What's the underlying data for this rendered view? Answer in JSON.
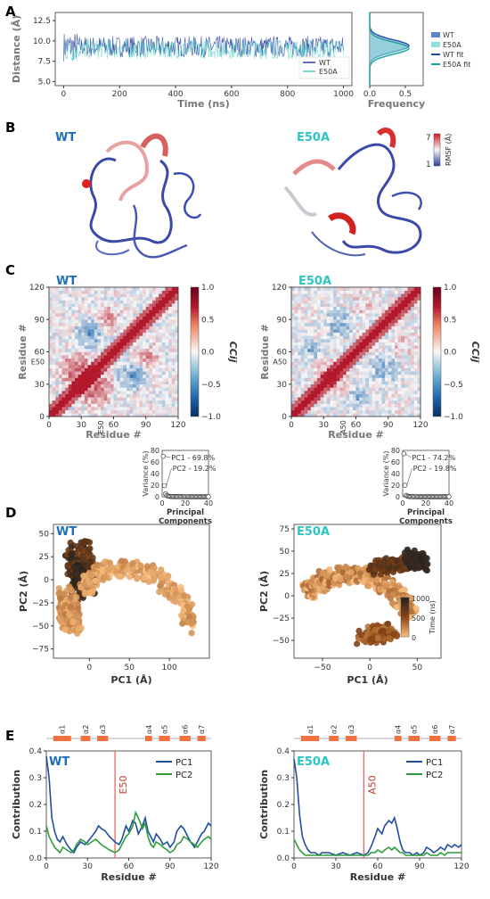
{
  "panels": {
    "A": "A",
    "B": "B",
    "C": "C",
    "D": "D",
    "E": "E"
  },
  "variants": {
    "wt": "WT",
    "e50a": "E50A"
  },
  "colors": {
    "wt": "#2a3f9e",
    "e50a": "#4fd1c5",
    "wt_fit": "#1c4fa0",
    "e50a_fit": "#1aa39a",
    "pc1": "#1f4ea1",
    "pc2": "#2e9e3a",
    "marker": "#e85a5a",
    "wt_text": "#1f6fb8",
    "e50a_text": "#2ec4c4",
    "alpha_bar": "#f07040"
  },
  "chart_data": [
    {
      "id": "A-trace",
      "type": "line",
      "ylabel": "Distance (Å)",
      "xlabel": "Time (ns)",
      "xlim": [
        -30,
        1030
      ],
      "ylim": [
        4.5,
        13.5
      ],
      "x_ticks": [
        "0",
        "200",
        "400",
        "600",
        "800",
        "1000"
      ],
      "y_ticks": [
        "5.0",
        "7.5",
        "10.0",
        "12.5"
      ],
      "legend": [
        "WT",
        "E50A"
      ],
      "legend_position": "right",
      "series": [
        {
          "name": "WT",
          "mean": 9.3,
          "spread": 1.3
        },
        {
          "name": "E50A",
          "mean": 9.0,
          "spread": 1.2
        }
      ]
    },
    {
      "id": "A-hist",
      "type": "area",
      "xlabel": "Frequency",
      "xlim": [
        0,
        0.75
      ],
      "x_ticks": [
        "0.0",
        "0.5"
      ],
      "legend": [
        "WT",
        "E50A",
        "WT fit",
        "E50A fit"
      ],
      "legend_position": "right",
      "series": [
        {
          "name": "WT",
          "peak_y": 9.4,
          "peak_freq": 0.55
        },
        {
          "name": "E50A",
          "peak_y": 9.1,
          "peak_freq": 0.55
        }
      ]
    },
    {
      "id": "C-WT",
      "type": "heatmap",
      "title": "WT",
      "xlabel": "Residue #",
      "ylabel": "Residue #",
      "x_ticks": [
        "0",
        "30",
        "60",
        "90",
        "120"
      ],
      "y_ticks": [
        "0",
        "30",
        "60",
        "90",
        "120"
      ],
      "marker": "E50",
      "colorbar_label": "CCij",
      "colorbar_ticks": [
        "1.0",
        "0.5",
        "0.0",
        "−0.5",
        "−1.0"
      ]
    },
    {
      "id": "C-E50A",
      "type": "heatmap",
      "title": "E50A",
      "xlabel": "Residue #",
      "ylabel": "Residue #",
      "x_ticks": [
        "0",
        "30",
        "60",
        "90",
        "120"
      ],
      "y_ticks": [
        "0",
        "30",
        "60",
        "90",
        "120"
      ],
      "marker": "A50",
      "colorbar_label": "CCij",
      "colorbar_ticks": [
        "1.0",
        "0.5",
        "0.0",
        "−0.5",
        "−1.0"
      ]
    },
    {
      "id": "D-WT-var",
      "type": "scatter",
      "ylabel": "Variance (%)",
      "xlabel": "Principal Components",
      "x_ticks": [
        "0",
        "20",
        "40"
      ],
      "y_ticks": [
        "0",
        "20",
        "40",
        "60",
        "80"
      ],
      "annotations": [
        "PC1 - 69.8%",
        "PC2 - 19.2%"
      ],
      "values": [
        69.8,
        19.2,
        5.1,
        2.3,
        1.2,
        0.8,
        0.6,
        0.5,
        0.4,
        0.35,
        0.3,
        0.28,
        0.26,
        0.24,
        0.22,
        0.2,
        0.19,
        0.18,
        0.17,
        0.16,
        0.15,
        0.14,
        0.13,
        0.12,
        0.11,
        0.1,
        0.1,
        0.1,
        0.1,
        0.1,
        0.1,
        0.1,
        0.1,
        0.1,
        0.1,
        0.1,
        0.1,
        0.1,
        0.1,
        0.1
      ]
    },
    {
      "id": "D-E50A-var",
      "type": "scatter",
      "ylabel": "Variance (%)",
      "xlabel": "Principal Components",
      "x_ticks": [
        "0",
        "20",
        "40"
      ],
      "y_ticks": [
        "0",
        "20",
        "40",
        "60",
        "80"
      ],
      "annotations": [
        "PC1 - 74.2%",
        "PC2 - 19.8%"
      ],
      "values": [
        74.2,
        19.8,
        2.6,
        1.1,
        0.6,
        0.4,
        0.3,
        0.25,
        0.2,
        0.18,
        0.16,
        0.14,
        0.12,
        0.11,
        0.1,
        0.1,
        0.1,
        0.1,
        0.1,
        0.1,
        0.1,
        0.1,
        0.1,
        0.1,
        0.1,
        0.1,
        0.1,
        0.1,
        0.1,
        0.1,
        0.1,
        0.1,
        0.1,
        0.1,
        0.1,
        0.1,
        0.1,
        0.1,
        0.1,
        0.1
      ]
    },
    {
      "id": "D-WT",
      "type": "scatter",
      "title": "WT",
      "xlabel": "PC1 (Å)",
      "ylabel": "PC2 (Å)",
      "xlim": [
        -45,
        150
      ],
      "ylim": [
        -85,
        60
      ],
      "x_ticks": [
        "0",
        "50",
        "100"
      ],
      "y_ticks": [
        "50",
        "25",
        "0",
        "−25",
        "−50",
        "−75"
      ]
    },
    {
      "id": "D-E50A",
      "type": "scatter",
      "title": "E50A",
      "xlabel": "PC1 (Å)",
      "ylabel": "PC2 (Å)",
      "xlim": [
        -80,
        75
      ],
      "ylim": [
        -70,
        80
      ],
      "x_ticks": [
        "−50",
        "0",
        "50"
      ],
      "y_ticks": [
        "75",
        "50",
        "25",
        "0",
        "−25",
        "−50"
      ],
      "colorbar_label": "Time (ns)",
      "colorbar_ticks": [
        "1000",
        "500",
        "0"
      ]
    },
    {
      "id": "E-WT",
      "type": "line",
      "title": "WT",
      "xlabel": "Residue #",
      "ylabel": "Contribution",
      "xlim": [
        0,
        120
      ],
      "ylim": [
        0,
        0.4
      ],
      "x_ticks": [
        "0",
        "30",
        "60",
        "90",
        "120"
      ],
      "y_ticks": [
        "0.0",
        "0.1",
        "0.2",
        "0.3",
        "0.4"
      ],
      "marker": "E50",
      "marker_x": 50,
      "helices": [
        "α1",
        "α2",
        "α3",
        "α4",
        "α5",
        "α6",
        "α7"
      ],
      "helix_ranges": [
        [
          5,
          18
        ],
        [
          25,
          32
        ],
        [
          37,
          45
        ],
        [
          72,
          77
        ],
        [
          82,
          90
        ],
        [
          97,
          105
        ],
        [
          110,
          116
        ]
      ],
      "legend": [
        "PC1",
        "PC2"
      ],
      "legend_position": "top-right",
      "series": [
        {
          "name": "PC1",
          "x": [
            0,
            2,
            4,
            6,
            8,
            10,
            12,
            15,
            18,
            20,
            22,
            25,
            28,
            30,
            33,
            36,
            38,
            40,
            43,
            46,
            50,
            53,
            55,
            58,
            60,
            63,
            65,
            67,
            70,
            72,
            74,
            76,
            78,
            80,
            83,
            85,
            88,
            90,
            93,
            95,
            98,
            100,
            103,
            105,
            108,
            110,
            113,
            115,
            118,
            120
          ],
          "values": [
            0.38,
            0.3,
            0.15,
            0.1,
            0.07,
            0.06,
            0.08,
            0.05,
            0.03,
            0.02,
            0.04,
            0.06,
            0.05,
            0.06,
            0.08,
            0.1,
            0.12,
            0.11,
            0.1,
            0.08,
            0.06,
            0.05,
            0.07,
            0.12,
            0.1,
            0.14,
            0.13,
            0.09,
            0.12,
            0.15,
            0.1,
            0.08,
            0.06,
            0.09,
            0.07,
            0.05,
            0.06,
            0.04,
            0.06,
            0.1,
            0.12,
            0.11,
            0.08,
            0.06,
            0.04,
            0.06,
            0.09,
            0.1,
            0.13,
            0.12
          ]
        },
        {
          "name": "PC2",
          "x": [
            0,
            2,
            4,
            6,
            8,
            10,
            12,
            15,
            18,
            20,
            22,
            25,
            28,
            30,
            33,
            36,
            38,
            40,
            43,
            46,
            50,
            53,
            55,
            58,
            60,
            63,
            65,
            67,
            70,
            72,
            74,
            76,
            78,
            80,
            83,
            85,
            88,
            90,
            93,
            95,
            98,
            100,
            103,
            105,
            108,
            110,
            113,
            115,
            118,
            120
          ],
          "values": [
            0.12,
            0.08,
            0.06,
            0.04,
            0.03,
            0.02,
            0.04,
            0.03,
            0.02,
            0.03,
            0.05,
            0.07,
            0.06,
            0.05,
            0.06,
            0.07,
            0.06,
            0.05,
            0.04,
            0.03,
            0.02,
            0.03,
            0.05,
            0.08,
            0.09,
            0.12,
            0.17,
            0.15,
            0.11,
            0.13,
            0.08,
            0.05,
            0.04,
            0.06,
            0.05,
            0.04,
            0.03,
            0.02,
            0.03,
            0.05,
            0.06,
            0.08,
            0.07,
            0.06,
            0.05,
            0.04,
            0.06,
            0.07,
            0.08,
            0.07
          ]
        }
      ]
    },
    {
      "id": "E-E50A",
      "type": "line",
      "title": "E50A",
      "xlabel": "Residue #",
      "ylabel": "Contribution",
      "xlim": [
        0,
        120
      ],
      "ylim": [
        0,
        0.4
      ],
      "x_ticks": [
        "0",
        "30",
        "60",
        "90",
        "120"
      ],
      "y_ticks": [
        "0.0",
        "0.1",
        "0.2",
        "0.3",
        "0.4"
      ],
      "marker": "A50",
      "marker_x": 50,
      "helices": [
        "α1",
        "α2",
        "α3",
        "α4",
        "α5",
        "α6",
        "α7"
      ],
      "helix_ranges": [
        [
          5,
          18
        ],
        [
          25,
          32
        ],
        [
          37,
          45
        ],
        [
          72,
          77
        ],
        [
          82,
          90
        ],
        [
          97,
          105
        ],
        [
          110,
          116
        ]
      ],
      "legend": [
        "PC1",
        "PC2"
      ],
      "legend_position": "top-right",
      "series": [
        {
          "name": "PC1",
          "x": [
            0,
            2,
            4,
            6,
            8,
            10,
            12,
            15,
            18,
            20,
            25,
            30,
            35,
            40,
            45,
            50,
            53,
            55,
            58,
            60,
            63,
            65,
            68,
            70,
            72,
            74,
            76,
            78,
            80,
            83,
            85,
            88,
            90,
            93,
            95,
            98,
            100,
            103,
            105,
            108,
            110,
            113,
            115,
            118,
            120
          ],
          "values": [
            0.37,
            0.3,
            0.16,
            0.08,
            0.05,
            0.03,
            0.02,
            0.02,
            0.01,
            0.02,
            0.02,
            0.01,
            0.02,
            0.01,
            0.02,
            0.01,
            0.02,
            0.04,
            0.08,
            0.11,
            0.09,
            0.12,
            0.14,
            0.13,
            0.15,
            0.11,
            0.06,
            0.03,
            0.02,
            0.02,
            0.01,
            0.02,
            0.01,
            0.02,
            0.04,
            0.03,
            0.02,
            0.03,
            0.04,
            0.03,
            0.05,
            0.04,
            0.05,
            0.04,
            0.05
          ]
        },
        {
          "name": "PC2",
          "x": [
            0,
            2,
            4,
            6,
            8,
            10,
            12,
            15,
            18,
            20,
            25,
            30,
            35,
            40,
            45,
            50,
            53,
            55,
            58,
            60,
            63,
            65,
            68,
            70,
            72,
            74,
            76,
            78,
            80,
            83,
            85,
            88,
            90,
            93,
            95,
            98,
            100,
            103,
            105,
            108,
            110,
            113,
            115,
            118,
            120
          ],
          "values": [
            0.07,
            0.05,
            0.03,
            0.02,
            0.01,
            0.01,
            0.01,
            0.01,
            0.01,
            0.01,
            0.01,
            0.01,
            0.01,
            0.01,
            0.01,
            0.01,
            0.01,
            0.02,
            0.02,
            0.03,
            0.02,
            0.03,
            0.04,
            0.03,
            0.04,
            0.03,
            0.02,
            0.02,
            0.01,
            0.01,
            0.01,
            0.01,
            0.01,
            0.01,
            0.02,
            0.01,
            0.01,
            0.01,
            0.02,
            0.01,
            0.02,
            0.02,
            0.02,
            0.02,
            0.02
          ]
        }
      ]
    }
  ],
  "panelB": {
    "rmsf_label": "RMSF (Å)",
    "rmsf_max": "7",
    "rmsf_min": "1"
  }
}
